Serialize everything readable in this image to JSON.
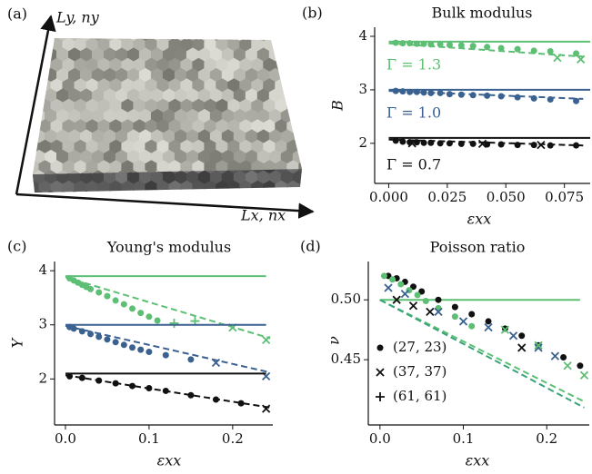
{
  "panel_a": {
    "label": "(a)",
    "y_axis_label": "Ly, ny",
    "x_axis_label": "Lx, nx"
  },
  "chart_data": [
    {
      "type": "line",
      "panel": "(b)",
      "title": "Bulk modulus",
      "xlabel": "εxx",
      "ylabel": "B",
      "xlim": [
        -0.006,
        0.086
      ],
      "ylim": [
        1.25,
        4.17
      ],
      "xticks": [
        {
          "value": 0,
          "label": "0.000"
        },
        {
          "value": 0.025,
          "label": "0.025"
        },
        {
          "value": 0.05,
          "label": "0.050"
        },
        {
          "value": 0.075,
          "label": "0.075"
        }
      ],
      "yticks": [
        2,
        3,
        4
      ],
      "annotations": [
        {
          "text": "Γ = 1.3",
          "color": "#5cbf73"
        },
        {
          "text": "Γ = 1.0",
          "color": "#3a6190"
        },
        {
          "text": "Γ = 0.7",
          "color": "#111111"
        }
      ],
      "series": [
        {
          "color": "#5cbf73",
          "style": "solid",
          "x": [
            0,
            0.086
          ],
          "values": [
            3.9,
            3.9
          ]
        },
        {
          "color": "#5cbf73",
          "style": "dashed",
          "x": [
            0,
            0.083
          ],
          "values": [
            3.87,
            3.62
          ]
        },
        {
          "color": "#5cbf73",
          "marker": "dot",
          "x": [
            0.003,
            0.006,
            0.009,
            0.012,
            0.015,
            0.018,
            0.022,
            0.026,
            0.031,
            0.036,
            0.042,
            0.048,
            0.055,
            0.062,
            0.069,
            0.08
          ],
          "values": [
            3.88,
            3.87,
            3.87,
            3.86,
            3.86,
            3.85,
            3.85,
            3.84,
            3.83,
            3.82,
            3.8,
            3.78,
            3.76,
            3.73,
            3.72,
            3.68
          ]
        },
        {
          "color": "#5cbf73",
          "marker": "cross",
          "x": [
            0.072,
            0.082
          ],
          "values": [
            3.6,
            3.57
          ]
        },
        {
          "color": "#3a6190",
          "style": "solid",
          "x": [
            0,
            0.086
          ],
          "values": [
            3.0,
            3.0
          ]
        },
        {
          "color": "#3a6190",
          "style": "dashed",
          "x": [
            0,
            0.083
          ],
          "values": [
            2.98,
            2.83
          ]
        },
        {
          "color": "#3a6190",
          "marker": "dot",
          "x": [
            0.003,
            0.006,
            0.009,
            0.012,
            0.015,
            0.018,
            0.022,
            0.026,
            0.031,
            0.036,
            0.042,
            0.048,
            0.055,
            0.062,
            0.069,
            0.08
          ],
          "values": [
            2.98,
            2.97,
            2.96,
            2.96,
            2.95,
            2.94,
            2.94,
            2.92,
            2.91,
            2.9,
            2.89,
            2.88,
            2.86,
            2.84,
            2.82,
            2.79
          ]
        },
        {
          "color": "#111111",
          "style": "solid",
          "x": [
            0,
            0.086
          ],
          "values": [
            2.1,
            2.1
          ]
        },
        {
          "color": "#111111",
          "style": "dashed",
          "x": [
            0,
            0.083
          ],
          "values": [
            2.07,
            1.96
          ]
        },
        {
          "color": "#111111",
          "marker": "dot",
          "x": [
            0.003,
            0.006,
            0.009,
            0.012,
            0.015,
            0.018,
            0.022,
            0.026,
            0.031,
            0.036,
            0.042,
            0.048,
            0.055,
            0.062,
            0.069,
            0.08
          ],
          "values": [
            2.05,
            2.03,
            2.02,
            2.02,
            2.01,
            2.01,
            2.0,
            2.0,
            1.99,
            1.99,
            1.98,
            1.98,
            1.97,
            1.97,
            1.96,
            1.96
          ]
        },
        {
          "color": "#111111",
          "marker": "cross",
          "x": [
            0.01,
            0.04,
            0.065
          ],
          "values": [
            2.0,
            1.99,
            1.97
          ]
        }
      ]
    },
    {
      "type": "line",
      "panel": "(c)",
      "title": "Young's modulus",
      "xlabel": "εxx",
      "ylabel": "Y",
      "xlim": [
        -0.013,
        0.248
      ],
      "ylim": [
        1.15,
        4.17
      ],
      "xticks": [
        {
          "value": 0,
          "label": "0.0"
        },
        0.1,
        0.2
      ],
      "yticks": [
        2,
        3,
        4
      ],
      "series": [
        {
          "color": "#5cbf73",
          "style": "solid",
          "x": [
            0,
            0.24
          ],
          "values": [
            3.9,
            3.9
          ]
        },
        {
          "color": "#5cbf73",
          "style": "dashed",
          "x": [
            0,
            0.245
          ],
          "values": [
            3.88,
            2.75
          ]
        },
        {
          "color": "#5cbf73",
          "marker": "dot",
          "x": [
            0.005,
            0.01,
            0.015,
            0.02,
            0.025,
            0.03,
            0.04,
            0.05,
            0.06,
            0.07,
            0.08,
            0.09,
            0.1,
            0.11
          ],
          "values": [
            3.86,
            3.82,
            3.78,
            3.74,
            3.7,
            3.66,
            3.6,
            3.53,
            3.45,
            3.38,
            3.3,
            3.22,
            3.15,
            3.08
          ]
        },
        {
          "color": "#5cbf73",
          "marker": "plus",
          "x": [
            0.13,
            0.155
          ],
          "values": [
            3.03,
            3.07
          ]
        },
        {
          "color": "#5cbf73",
          "marker": "cross",
          "x": [
            0.2,
            0.24
          ],
          "values": [
            2.95,
            2.72
          ]
        },
        {
          "color": "#3a6190",
          "style": "solid",
          "x": [
            0,
            0.24
          ],
          "values": [
            3.0,
            3.0
          ]
        },
        {
          "color": "#3a6190",
          "style": "dashed",
          "x": [
            0,
            0.245
          ],
          "values": [
            2.98,
            2.12
          ]
        },
        {
          "color": "#3a6190",
          "marker": "dot",
          "x": [
            0.005,
            0.01,
            0.02,
            0.03,
            0.04,
            0.05,
            0.06,
            0.07,
            0.08,
            0.09,
            0.1,
            0.12,
            0.15
          ],
          "values": [
            2.96,
            2.93,
            2.88,
            2.83,
            2.78,
            2.73,
            2.68,
            2.63,
            2.58,
            2.54,
            2.5,
            2.44,
            2.36
          ]
        },
        {
          "color": "#3a6190",
          "marker": "cross",
          "x": [
            0.18,
            0.24
          ],
          "values": [
            2.3,
            2.05
          ]
        },
        {
          "color": "#111111",
          "style": "solid",
          "x": [
            0,
            0.24
          ],
          "values": [
            2.1,
            2.1
          ]
        },
        {
          "color": "#111111",
          "style": "dashed",
          "x": [
            0,
            0.245
          ],
          "values": [
            2.07,
            1.47
          ]
        },
        {
          "color": "#111111",
          "marker": "dot",
          "x": [
            0.005,
            0.02,
            0.04,
            0.06,
            0.08,
            0.1,
            0.12,
            0.15,
            0.18,
            0.21
          ],
          "values": [
            2.05,
            2.02,
            1.97,
            1.92,
            1.87,
            1.83,
            1.78,
            1.7,
            1.62,
            1.55
          ]
        },
        {
          "color": "#111111",
          "marker": "cross",
          "x": [
            0.24
          ],
          "values": [
            1.45
          ]
        }
      ]
    },
    {
      "type": "line",
      "panel": "(d)",
      "title": "Poisson ratio",
      "xlabel": "εxx",
      "ylabel": "ν",
      "xlim": [
        -0.014,
        0.251
      ],
      "ylim": [
        0.3955,
        0.532
      ],
      "xticks": [
        {
          "value": 0,
          "label": "0.0"
        },
        0.1,
        0.2
      ],
      "yticks": [
        {
          "value": 0.45,
          "label": "0.45"
        },
        {
          "value": 0.5,
          "label": "0.50"
        }
      ],
      "legend": [
        {
          "label": "(27, 23)",
          "marker": "dot"
        },
        {
          "label": "(37, 37)",
          "marker": "cross"
        },
        {
          "label": "(61, 61)",
          "marker": "plus"
        }
      ],
      "series": [
        {
          "color": "#5cbf73",
          "style": "solid",
          "x": [
            0,
            0.24
          ],
          "values": [
            0.5,
            0.5
          ]
        },
        {
          "color": "#5cbf73",
          "style": "dashed",
          "x": [
            0,
            0.245
          ],
          "values": [
            0.5,
            0.415
          ]
        },
        {
          "color": "#3aa37a",
          "style": "dashed",
          "x": [
            0,
            0.245
          ],
          "values": [
            0.5,
            0.41
          ]
        },
        {
          "color": "#111111",
          "marker": "dot",
          "x": [
            0.01,
            0.02,
            0.03,
            0.04,
            0.05,
            0.07,
            0.09,
            0.11,
            0.13,
            0.15,
            0.17,
            0.19,
            0.22,
            0.24
          ],
          "values": [
            0.52,
            0.518,
            0.515,
            0.511,
            0.507,
            0.5,
            0.494,
            0.488,
            0.482,
            0.476,
            0.47,
            0.462,
            0.452,
            0.445
          ]
        },
        {
          "color": "#5cbf73",
          "marker": "dot",
          "x": [
            0.005,
            0.015,
            0.025,
            0.035,
            0.045,
            0.055,
            0.07,
            0.09,
            0.11
          ],
          "values": [
            0.52,
            0.517,
            0.513,
            0.508,
            0.504,
            0.499,
            0.493,
            0.486,
            0.478
          ]
        },
        {
          "color": "#3a6190",
          "marker": "cross",
          "x": [
            0.01,
            0.03,
            0.07,
            0.1,
            0.13,
            0.16,
            0.19,
            0.21
          ],
          "values": [
            0.51,
            0.505,
            0.49,
            0.482,
            0.477,
            0.47,
            0.46,
            0.453
          ]
        },
        {
          "color": "#111111",
          "marker": "cross",
          "x": [
            0.02,
            0.04,
            0.06,
            0.17
          ],
          "values": [
            0.5,
            0.495,
            0.49,
            0.46
          ]
        },
        {
          "color": "#5cbf73",
          "marker": "cross",
          "x": [
            0.15,
            0.19,
            0.225,
            0.245
          ],
          "values": [
            0.475,
            0.462,
            0.445,
            0.437
          ]
        }
      ]
    }
  ]
}
